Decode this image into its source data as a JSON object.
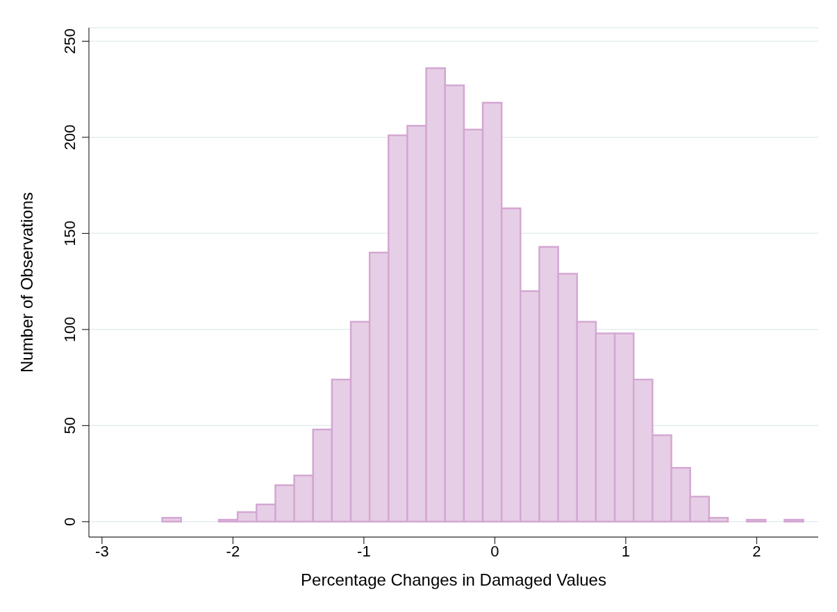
{
  "chart_data": {
    "type": "histogram",
    "xlabel": "Percentage Changes in Damaged Values",
    "ylabel": "Number of Observations",
    "bins": [
      -2.54,
      -2.396,
      -2.252,
      -2.108,
      -1.964,
      -1.82,
      -1.676,
      -1.532,
      -1.388,
      -1.244,
      -1.1,
      -0.956,
      -0.812,
      -0.668,
      -0.524,
      -0.38,
      -0.236,
      -0.092,
      0.052,
      0.196,
      0.34,
      0.484,
      0.628,
      0.772,
      0.916,
      1.06,
      1.204,
      1.348,
      1.492,
      1.636,
      1.78,
      1.924,
      2.068,
      2.212,
      2.356
    ],
    "values": [
      2,
      0,
      0,
      1,
      5,
      9,
      19,
      24,
      48,
      74,
      104,
      140,
      201,
      206,
      236,
      227,
      204,
      218,
      163,
      120,
      143,
      129,
      104,
      98,
      98,
      74,
      45,
      28,
      13,
      2,
      0,
      1,
      0,
      1
    ],
    "color": "#e6cfe6",
    "xlim": [
      -3.1,
      2.47
    ],
    "xticks": [
      -3,
      -2,
      -1,
      0,
      1,
      2
    ],
    "ylim": [
      -8,
      257
    ],
    "yticks": [
      0,
      50,
      100,
      150,
      200,
      250
    ],
    "grid": "y"
  }
}
